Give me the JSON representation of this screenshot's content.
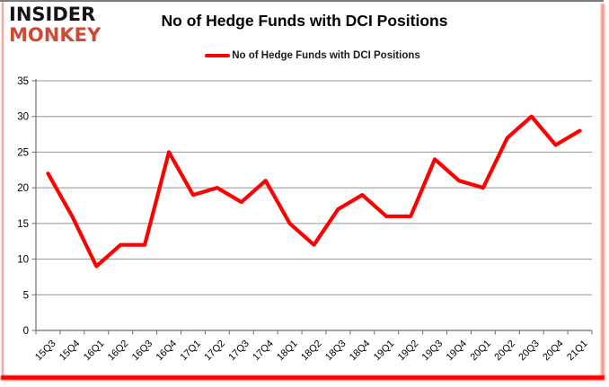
{
  "logo": {
    "line1": "INSIDER",
    "line2": "MONKEY",
    "color_line1": "#141414",
    "color_line2": "#cf4a33"
  },
  "title": "No of Hedge Funds with DCI Positions",
  "legend": {
    "label": "No of Hedge Funds with DCI Positions",
    "swatch_color": "#ff0000"
  },
  "chart_data": {
    "type": "line",
    "title": "No of Hedge Funds with DCI Positions",
    "categories": [
      "15Q3",
      "15Q4",
      "16Q1",
      "16Q2",
      "16Q3",
      "16Q4",
      "17Q1",
      "17Q2",
      "17Q3",
      "17Q4",
      "18Q1",
      "18Q2",
      "18Q3",
      "18Q4",
      "19Q1",
      "19Q2",
      "19Q3",
      "19Q4",
      "20Q1",
      "20Q2",
      "20Q3",
      "20Q4",
      "21Q1"
    ],
    "series": [
      {
        "name": "No of Hedge Funds with DCI Positions",
        "color": "#ff0000",
        "values": [
          22,
          16,
          9,
          12,
          12,
          25,
          19,
          20,
          18,
          21,
          15,
          12,
          17,
          19,
          16,
          16,
          24,
          21,
          20,
          27,
          30,
          26,
          28
        ]
      }
    ],
    "xlabel": "",
    "ylabel": "",
    "ylim": [
      0,
      35
    ],
    "ytick_step": 5,
    "grid": true,
    "gridline_color": "#949494",
    "axis_color": "#6e6e6e",
    "tick_label_color": "#000000",
    "legend_position": "top"
  },
  "frame": {
    "top_border_color": "#7d7d7d",
    "side_border_color": "#ee9484",
    "bottom_bar_color": "#ff0000"
  }
}
